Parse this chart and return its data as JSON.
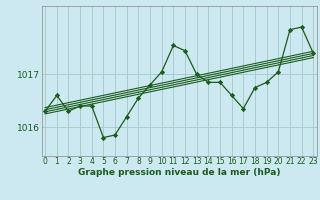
{
  "title": "Graphe pression niveau de la mer (hPa)",
  "bg_color": "#cce8f0",
  "grid_color": "#aacccc",
  "line_color": "#1a5c1a",
  "marker_color": "#1a5c1a",
  "x_ticks": [
    0,
    1,
    2,
    3,
    4,
    5,
    6,
    7,
    8,
    9,
    10,
    11,
    12,
    13,
    14,
    15,
    16,
    17,
    18,
    19,
    20,
    21,
    22,
    23
  ],
  "y_ticks": [
    1016,
    1017
  ],
  "ylim": [
    1015.45,
    1018.3
  ],
  "xlim": [
    -0.3,
    23.3
  ],
  "main_data": [
    1016.3,
    1016.6,
    1016.3,
    1016.4,
    1016.4,
    1015.8,
    1015.85,
    1016.2,
    1016.55,
    1016.8,
    1017.05,
    1017.55,
    1017.45,
    1017.0,
    1016.85,
    1016.85,
    1016.6,
    1016.35,
    1016.75,
    1016.85,
    1017.05,
    1017.85,
    1017.9,
    1017.4
  ],
  "trend_lines": [
    [
      [
        0,
        23
      ],
      [
        1016.25,
        1017.32
      ]
    ],
    [
      [
        0,
        23
      ],
      [
        1016.29,
        1017.36
      ]
    ],
    [
      [
        0,
        23
      ],
      [
        1016.33,
        1017.4
      ]
    ],
    [
      [
        0,
        23
      ],
      [
        1016.37,
        1017.44
      ]
    ]
  ],
  "title_fontsize": 6.5,
  "tick_fontsize": 5.5,
  "ytick_fontsize": 6.5
}
